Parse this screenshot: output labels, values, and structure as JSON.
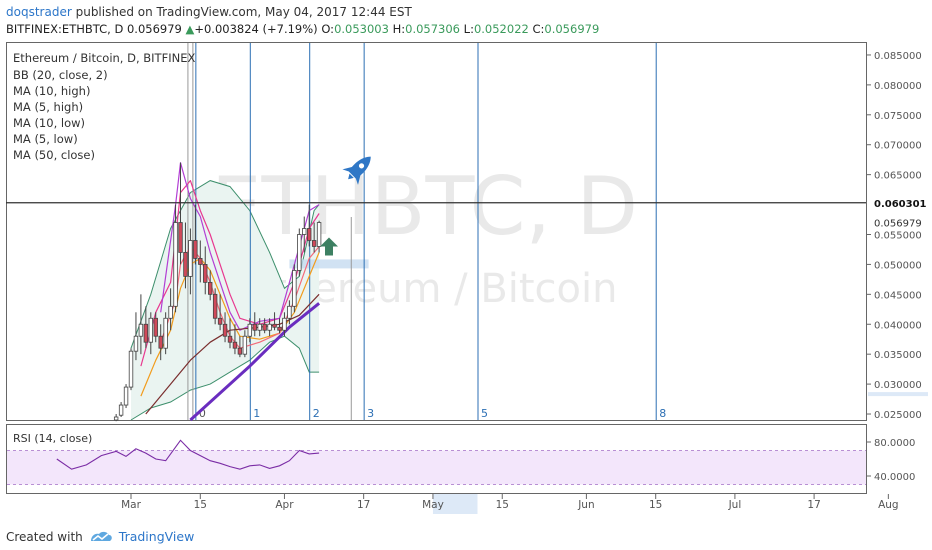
{
  "header": {
    "author": "doqstrader",
    "published": "published on TradingView.com, May 04, 2017 12:44 EST",
    "symbol": "BITFINEX:ETHBTC, D",
    "last": "0.056979",
    "change_arrow": "▲",
    "change": "+0.003824 (+7.19%)",
    "o_label": "O:",
    "o_value": "0.053003",
    "h_label": "H:",
    "h_value": "0.057306",
    "l_label": "L:",
    "l_value": "0.052022",
    "c_label": "C:",
    "c_value": "0.056979"
  },
  "legend": {
    "title": "Ethereum / Bitcoin, D, BITFINEX",
    "indicators": [
      "BB (20, close, 2)",
      "MA (10, high)",
      "MA (5, high)",
      "MA (10, low)",
      "MA (5, low)",
      "MA (50, close)"
    ]
  },
  "watermark": {
    "line1": "ETHBTC, D",
    "line2": "Ethereum / Bitcoin"
  },
  "rsi_label": "RSI (14, close)",
  "footer": {
    "created_with": "Created with",
    "brand": "TradingView"
  },
  "colors": {
    "up": "#3a9a5b",
    "candle_up": "#ffffff",
    "candle_down": "#d0495a",
    "bb": "#3d8f6c",
    "bb_fill": "#eaf4f1",
    "ma_high_10": "#e8388f",
    "ma_high_5": "#b23ed4",
    "ma_low_10": "#f29c1c",
    "ma_low_5": "#f36a7a",
    "ma_50": "#7a2e2e",
    "trend": "#6a2dbf",
    "fib_lines": "#2c6fb4",
    "rsi": "#7a2ca5",
    "rsi_band": "#f3e6fb",
    "target_box": "#c5dbf0",
    "arrow": "#3d8062",
    "rocket": "#2f77c6",
    "level_line": "#333333"
  },
  "icons": [
    "up-arrow-icon",
    "rocket-icon",
    "tradingview-logo-icon"
  ],
  "chart_data": {
    "type": "candlestick",
    "title": "Ethereum / Bitcoin, D, BITFINEX",
    "y_ticks": [
      "0.085000",
      "0.080000",
      "0.075000",
      "0.070000",
      "0.065000",
      "0.055000",
      "0.050000",
      "0.045000",
      "0.040000",
      "0.035000",
      "0.030000",
      "0.025000"
    ],
    "price_ylim": [
      0.024,
      0.087
    ],
    "x_labels": [
      "Mar",
      "15",
      "Apr",
      "17",
      "May",
      "15",
      "Jun",
      "15",
      "Jul",
      "17",
      "Aug"
    ],
    "x_label_days": [
      0,
      14,
      31,
      47,
      61,
      75,
      92,
      106,
      122,
      138,
      153
    ],
    "x_highlight": [
      61,
      70
    ],
    "level_line": {
      "value": 0.060301,
      "label": "0.060301"
    },
    "last_price": {
      "value": 0.056979,
      "label": "0.056979"
    },
    "fib_time_zones": [
      {
        "label": "0",
        "day": 13
      },
      {
        "label": "1",
        "day": 24
      },
      {
        "label": "2",
        "day": 36
      },
      {
        "label": "3",
        "day": 47
      },
      {
        "label": "5",
        "day": 70
      },
      {
        "label": "8",
        "day": 106
      }
    ],
    "target_zone": {
      "from_day": 32,
      "to_day": 48,
      "price": 0.05
    },
    "up_arrow": {
      "day": 40,
      "price": 0.053
    },
    "rocket": {
      "day": 46,
      "price": 0.066
    },
    "candles": [
      {
        "d": -3,
        "o": 0.024,
        "h": 0.025,
        "l": 0.0238,
        "c": 0.0245
      },
      {
        "d": -2,
        "o": 0.0248,
        "h": 0.027,
        "l": 0.0245,
        "c": 0.0265
      },
      {
        "d": -1,
        "o": 0.0265,
        "h": 0.03,
        "l": 0.026,
        "c": 0.0295
      },
      {
        "d": 0,
        "o": 0.0295,
        "h": 0.036,
        "l": 0.029,
        "c": 0.0355
      },
      {
        "d": 1,
        "o": 0.0355,
        "h": 0.042,
        "l": 0.034,
        "c": 0.038
      },
      {
        "d": 2,
        "o": 0.038,
        "h": 0.045,
        "l": 0.035,
        "c": 0.04
      },
      {
        "d": 3,
        "o": 0.04,
        "h": 0.043,
        "l": 0.036,
        "c": 0.037
      },
      {
        "d": 4,
        "o": 0.037,
        "h": 0.042,
        "l": 0.035,
        "c": 0.041
      },
      {
        "d": 5,
        "o": 0.041,
        "h": 0.042,
        "l": 0.037,
        "c": 0.038
      },
      {
        "d": 6,
        "o": 0.038,
        "h": 0.04,
        "l": 0.034,
        "c": 0.036
      },
      {
        "d": 7,
        "o": 0.036,
        "h": 0.042,
        "l": 0.035,
        "c": 0.041
      },
      {
        "d": 8,
        "o": 0.041,
        "h": 0.046,
        "l": 0.039,
        "c": 0.043
      },
      {
        "d": 9,
        "o": 0.043,
        "h": 0.06,
        "l": 0.042,
        "c": 0.057
      },
      {
        "d": 10,
        "o": 0.057,
        "h": 0.067,
        "l": 0.05,
        "c": 0.052
      },
      {
        "d": 11,
        "o": 0.052,
        "h": 0.057,
        "l": 0.046,
        "c": 0.048
      },
      {
        "d": 12,
        "o": 0.048,
        "h": 0.056,
        "l": 0.045,
        "c": 0.054
      },
      {
        "d": 13,
        "o": 0.054,
        "h": 0.06,
        "l": 0.05,
        "c": 0.051
      },
      {
        "d": 14,
        "o": 0.051,
        "h": 0.054,
        "l": 0.047,
        "c": 0.05
      },
      {
        "d": 15,
        "o": 0.05,
        "h": 0.053,
        "l": 0.045,
        "c": 0.047
      },
      {
        "d": 16,
        "o": 0.047,
        "h": 0.049,
        "l": 0.044,
        "c": 0.045
      },
      {
        "d": 17,
        "o": 0.045,
        "h": 0.046,
        "l": 0.04,
        "c": 0.041
      },
      {
        "d": 18,
        "o": 0.041,
        "h": 0.045,
        "l": 0.039,
        "c": 0.04
      },
      {
        "d": 19,
        "o": 0.04,
        "h": 0.042,
        "l": 0.037,
        "c": 0.038
      },
      {
        "d": 20,
        "o": 0.038,
        "h": 0.041,
        "l": 0.036,
        "c": 0.037
      },
      {
        "d": 21,
        "o": 0.037,
        "h": 0.04,
        "l": 0.035,
        "c": 0.036
      },
      {
        "d": 22,
        "o": 0.036,
        "h": 0.038,
        "l": 0.0345,
        "c": 0.035
      },
      {
        "d": 23,
        "o": 0.035,
        "h": 0.039,
        "l": 0.0345,
        "c": 0.038
      },
      {
        "d": 24,
        "o": 0.038,
        "h": 0.041,
        "l": 0.037,
        "c": 0.04
      },
      {
        "d": 25,
        "o": 0.04,
        "h": 0.042,
        "l": 0.038,
        "c": 0.039
      },
      {
        "d": 26,
        "o": 0.039,
        "h": 0.041,
        "l": 0.038,
        "c": 0.04
      },
      {
        "d": 27,
        "o": 0.04,
        "h": 0.041,
        "l": 0.0385,
        "c": 0.039
      },
      {
        "d": 28,
        "o": 0.039,
        "h": 0.041,
        "l": 0.038,
        "c": 0.04
      },
      {
        "d": 29,
        "o": 0.04,
        "h": 0.042,
        "l": 0.039,
        "c": 0.0395
      },
      {
        "d": 30,
        "o": 0.0395,
        "h": 0.041,
        "l": 0.0385,
        "c": 0.039
      },
      {
        "d": 31,
        "o": 0.039,
        "h": 0.042,
        "l": 0.038,
        "c": 0.041
      },
      {
        "d": 32,
        "o": 0.041,
        "h": 0.044,
        "l": 0.04,
        "c": 0.043
      },
      {
        "d": 33,
        "o": 0.043,
        "h": 0.05,
        "l": 0.042,
        "c": 0.049
      },
      {
        "d": 34,
        "o": 0.049,
        "h": 0.056,
        "l": 0.048,
        "c": 0.055
      },
      {
        "d": 35,
        "o": 0.055,
        "h": 0.058,
        "l": 0.052,
        "c": 0.056
      },
      {
        "d": 36,
        "o": 0.056,
        "h": 0.06,
        "l": 0.053,
        "c": 0.054
      },
      {
        "d": 37,
        "o": 0.054,
        "h": 0.057,
        "l": 0.052,
        "c": 0.053
      },
      {
        "d": 38,
        "o": 0.053,
        "h": 0.0573,
        "l": 0.052,
        "c": 0.057
      }
    ],
    "series": [
      {
        "name": "BB (20, close, 2)",
        "kind": "band",
        "upper": [
          [
            0,
            0.036
          ],
          [
            4,
            0.045
          ],
          [
            8,
            0.056
          ],
          [
            12,
            0.062
          ],
          [
            16,
            0.064
          ],
          [
            20,
            0.063
          ],
          [
            24,
            0.059
          ],
          [
            28,
            0.052
          ],
          [
            31,
            0.046
          ],
          [
            34,
            0.048
          ],
          [
            37,
            0.059
          ],
          [
            38,
            0.06
          ]
        ],
        "lower": [
          [
            0,
            0.024
          ],
          [
            4,
            0.026
          ],
          [
            8,
            0.027
          ],
          [
            12,
            0.029
          ],
          [
            16,
            0.03
          ],
          [
            20,
            0.032
          ],
          [
            24,
            0.034
          ],
          [
            28,
            0.037
          ],
          [
            31,
            0.038
          ],
          [
            34,
            0.036
          ],
          [
            36,
            0.032
          ],
          [
            38,
            0.032
          ]
        ]
      },
      {
        "name": "MA (10, high)",
        "points": [
          [
            2,
            0.033
          ],
          [
            5,
            0.042
          ],
          [
            8,
            0.047
          ],
          [
            10,
            0.062
          ],
          [
            12,
            0.064
          ],
          [
            14,
            0.059
          ],
          [
            16,
            0.055
          ],
          [
            18,
            0.05
          ],
          [
            20,
            0.045
          ],
          [
            22,
            0.041
          ],
          [
            26,
            0.04
          ],
          [
            30,
            0.041
          ],
          [
            33,
            0.047
          ],
          [
            36,
            0.056
          ],
          [
            38,
            0.0585
          ]
        ]
      },
      {
        "name": "MA (5, high)",
        "points": [
          [
            6,
            0.042
          ],
          [
            9,
            0.06
          ],
          [
            10,
            0.067
          ],
          [
            12,
            0.061
          ],
          [
            14,
            0.058
          ],
          [
            16,
            0.052
          ],
          [
            18,
            0.047
          ],
          [
            20,
            0.042
          ],
          [
            22,
            0.039
          ],
          [
            26,
            0.0405
          ],
          [
            30,
            0.041
          ],
          [
            33,
            0.05
          ],
          [
            36,
            0.059
          ],
          [
            38,
            0.06
          ]
        ]
      },
      {
        "name": "MA (10, low)",
        "points": [
          [
            2,
            0.028
          ],
          [
            5,
            0.034
          ],
          [
            8,
            0.039
          ],
          [
            10,
            0.046
          ],
          [
            12,
            0.05
          ],
          [
            14,
            0.051
          ],
          [
            16,
            0.049
          ],
          [
            18,
            0.045
          ],
          [
            20,
            0.041
          ],
          [
            22,
            0.038
          ],
          [
            26,
            0.0375
          ],
          [
            30,
            0.0385
          ],
          [
            33,
            0.042
          ],
          [
            36,
            0.048
          ],
          [
            38,
            0.052
          ]
        ]
      },
      {
        "name": "MA (5, low)",
        "points": [
          [
            6,
            0.037
          ],
          [
            9,
            0.044
          ],
          [
            10,
            0.05
          ],
          [
            12,
            0.053
          ],
          [
            14,
            0.051
          ],
          [
            16,
            0.047
          ],
          [
            18,
            0.042
          ],
          [
            20,
            0.038
          ],
          [
            22,
            0.036
          ],
          [
            26,
            0.037
          ],
          [
            30,
            0.0385
          ],
          [
            33,
            0.044
          ],
          [
            36,
            0.051
          ],
          [
            38,
            0.053
          ]
        ]
      },
      {
        "name": "MA (50, close)",
        "points": [
          [
            3,
            0.025
          ],
          [
            8,
            0.03
          ],
          [
            12,
            0.034
          ],
          [
            16,
            0.037
          ],
          [
            20,
            0.039
          ],
          [
            26,
            0.0395
          ],
          [
            30,
            0.04
          ],
          [
            34,
            0.0415
          ],
          [
            38,
            0.045
          ]
        ]
      },
      {
        "name": "trendline",
        "points": [
          [
            12,
            0.024
          ],
          [
            24,
            0.033
          ],
          [
            32,
            0.0395
          ],
          [
            38,
            0.0435
          ]
        ]
      }
    ],
    "rsi": {
      "ylim": [
        20,
        100
      ],
      "ticks": [
        "80.0000",
        "40.0000"
      ],
      "band": [
        30,
        70
      ],
      "points": [
        [
          -15,
          60
        ],
        [
          -12,
          48
        ],
        [
          -9,
          53
        ],
        [
          -6,
          64
        ],
        [
          -3,
          69
        ],
        [
          -1,
          63
        ],
        [
          1,
          72
        ],
        [
          3,
          67
        ],
        [
          5,
          60
        ],
        [
          7,
          58
        ],
        [
          9,
          74
        ],
        [
          10,
          82
        ],
        [
          12,
          70
        ],
        [
          14,
          64
        ],
        [
          16,
          58
        ],
        [
          18,
          55
        ],
        [
          20,
          51
        ],
        [
          22,
          48
        ],
        [
          24,
          52
        ],
        [
          26,
          53
        ],
        [
          28,
          49
        ],
        [
          30,
          52
        ],
        [
          32,
          58
        ],
        [
          34,
          70
        ],
        [
          36,
          66
        ],
        [
          38,
          67
        ]
      ]
    }
  }
}
